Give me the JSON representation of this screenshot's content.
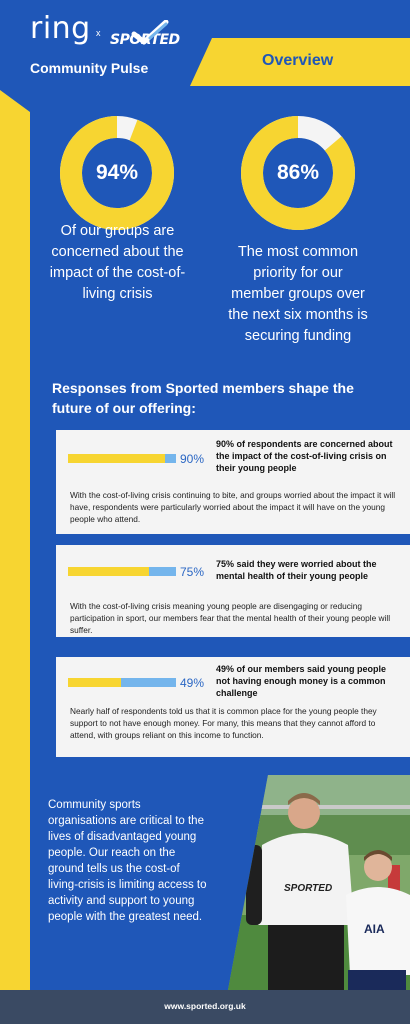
{
  "header": {
    "logo_ring": "ring",
    "logo_separator": "x",
    "logo_sported": "SPORTED",
    "title": "Community Pulse",
    "overview": "Overview"
  },
  "stats": [
    {
      "value": "94%",
      "fraction": 0.94,
      "description": "Of our groups are concerned about the impact of the cost-of-living crisis"
    },
    {
      "value": "86%",
      "fraction": 0.86,
      "description": "The most common priority for our member groups over the next six months is securing funding"
    }
  ],
  "section_heading": "Responses from Sported members shape the future of our offering:",
  "cards": [
    {
      "percent_label": "90%",
      "fraction": 0.9,
      "title": "90% of respondents are concerned about the impact of the cost-of-living crisis on their young people",
      "body": "With the cost-of-living crisis continuing to bite, and groups worried about the impact it will have, respondents were particularly worried about the impact it will have on the young people who attend."
    },
    {
      "percent_label": "75%",
      "fraction": 0.75,
      "title": "75% said they were worried about the mental health of their young people",
      "body": "With the cost-of-living crisis meaning young people are disengaging or reducing participation in sport, our members fear that the mental health of their young people will suffer."
    },
    {
      "percent_label": "49%",
      "fraction": 0.49,
      "title": "49% of our members said young people not having enough money is a common challenge",
      "body": "Nearly half of respondents told us that it is common place for the young people they support to not have enough money. For many, this means that they cannot afford to attend, with groups reliant on this income to function."
    }
  ],
  "bottom_text": "Community sports organisations are critical to the lives of disadvantaged young people. Our reach on the ground tells us the cost-of living-crisis is limiting access to activity and support to young people with the greatest need.",
  "photo": {
    "shirt_logo": "SPORTED",
    "kit_text": "AIA"
  },
  "footer": {
    "url": "www.sported.org.uk"
  },
  "colors": {
    "background": "#1f57b8",
    "accent_yellow": "#f7d531",
    "ring_remainder": "#f4f4f4",
    "bar_remainder": "#74b5ec",
    "footer": "#3a4a63"
  }
}
